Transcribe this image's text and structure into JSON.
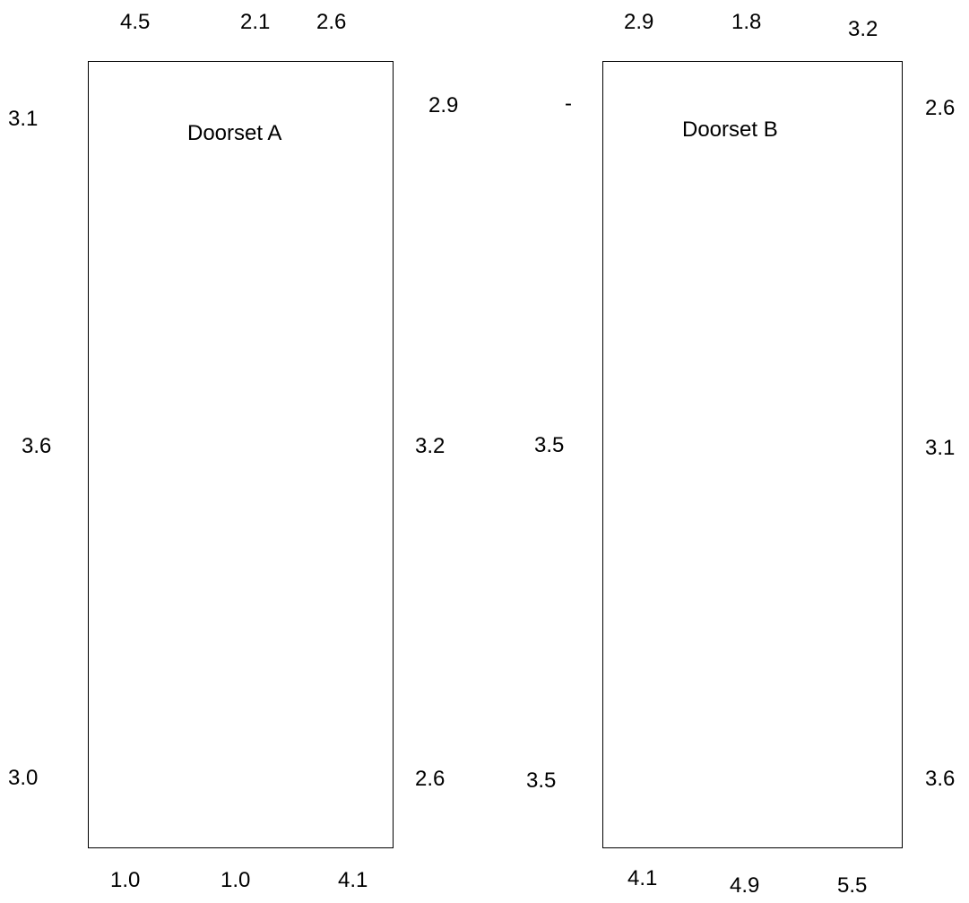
{
  "doorsets": [
    {
      "label": "Doorset A",
      "top": [
        "4.5",
        "2.1",
        "2.6"
      ],
      "left": [
        "3.1",
        "3.6",
        "3.0"
      ],
      "right": [
        "2.9",
        "3.2",
        "2.6"
      ],
      "bottom": [
        "1.0",
        "1.0",
        "4.1"
      ]
    },
    {
      "label": "Doorset B",
      "top": [
        "2.9",
        "1.8",
        "3.2"
      ],
      "left": [
        "-",
        "3.5",
        "3.5"
      ],
      "right": [
        "2.6",
        "3.1",
        "3.6"
      ],
      "bottom": [
        "4.1",
        "4.9",
        "5.5"
      ]
    }
  ],
  "colors": {
    "line": "#000000",
    "text": "#000000",
    "background": "#ffffff"
  }
}
